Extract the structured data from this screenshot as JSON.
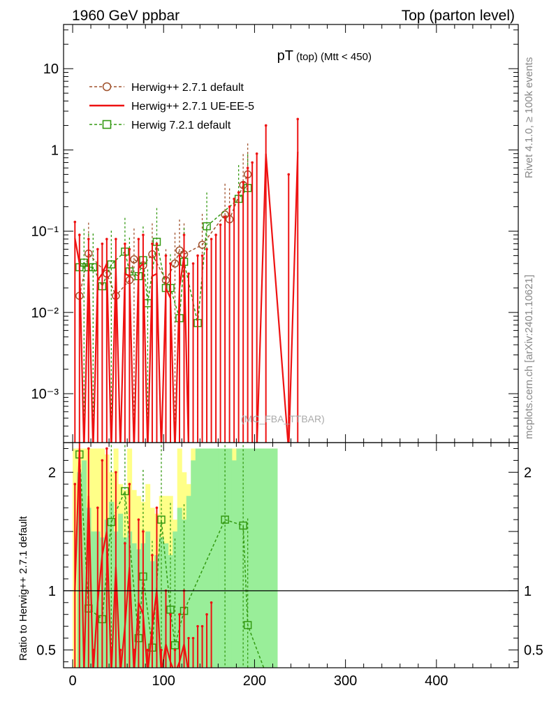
{
  "header": {
    "left": "1960 GeV ppbar",
    "right": "Top (parton level)"
  },
  "side_labels": {
    "top": "Rivet 4.1.0, ≥ 100k events",
    "bottom": "mcplots.cern.ch [arXiv:2401.10621]"
  },
  "watermark": "(MC_FBA_TTBAR)",
  "colors": {
    "herwig271_default": "#a0522d",
    "herwig271_ueee5": "#ee1111",
    "herwig721_default": "#339911",
    "band_yellow": "#ffff88",
    "band_green": "#99ee99"
  },
  "chart_data": [
    {
      "type": "line",
      "title": "pT",
      "title_sub": "(top) (Mtt < 450)",
      "yscale": "log",
      "ylim": [
        0.00025,
        35
      ],
      "xlim": [
        -10,
        490
      ],
      "y_ticks": [
        {
          "value": 10,
          "label": "10"
        },
        {
          "value": 1,
          "label": "1"
        },
        {
          "value": 0.1,
          "label": "10⁻¹"
        },
        {
          "value": 0.01,
          "label": "10⁻²"
        },
        {
          "value": 0.001,
          "label": "10⁻³"
        }
      ],
      "legend": [
        {
          "name": "Herwig++ 2.7.1 default",
          "style": "dashed-circle"
        },
        {
          "name": "Herwig++ 2.7.1 UE-EE-5",
          "style": "solid"
        },
        {
          "name": "Herwig 7.2.1 default",
          "style": "dashed-square"
        }
      ],
      "series": [
        {
          "name": "Herwig++ 2.7.1 default",
          "x": [
            7.5,
            17.5,
            37.5,
            47.5,
            62.5,
            67.5,
            77.5,
            87.5,
            102.5,
            112.5,
            117.5,
            122.5,
            142.5,
            167.5,
            172.5,
            187.5,
            192.5
          ],
          "y": [
            0.016,
            0.053,
            0.03,
            0.016,
            0.025,
            0.045,
            0.038,
            0.052,
            0.025,
            0.04,
            0.058,
            0.052,
            0.068,
            0.16,
            0.14,
            0.37,
            0.5
          ]
        },
        {
          "name": "Herwig++ 2.7.1 UE-EE-5",
          "x": [
            2.5,
            7.5,
            12.5,
            17.5,
            22.5,
            27.5,
            32.5,
            37.5,
            42.5,
            47.5,
            52.5,
            57.5,
            62.5,
            67.5,
            72.5,
            77.5,
            82.5,
            87.5,
            92.5,
            97.5,
            102.5,
            107.5,
            112.5,
            117.5,
            122.5,
            127.5,
            132.5,
            137.5,
            142.5,
            147.5,
            152.5,
            157.5,
            162.5,
            167.5,
            172.5,
            177.5,
            182.5,
            187.5,
            192.5,
            197.5,
            202.5,
            212.5,
            237.5,
            247.5
          ],
          "y": [
            0.082,
            0.04,
            0.0002,
            0.035,
            0.0002,
            0.025,
            0.03,
            0.04,
            0.0002,
            0.035,
            0.0002,
            0.03,
            0.028,
            0.0002,
            0.035,
            0.04,
            0.0002,
            0.028,
            0.03,
            0.0002,
            0.02,
            0.015,
            0.0002,
            0.02,
            0.05,
            0.0002,
            0.0002,
            0.0002,
            0.0002,
            0.0002,
            0.0002,
            0.0002,
            0.0002,
            0.0002,
            0.0002,
            0.0002,
            0.0002,
            0.0002,
            0.0002,
            0.0002,
            0.0002,
            0.9,
            0.0002,
            0.95
          ],
          "yerr_hi": [
            0.13,
            0.09,
            0.0002,
            0.08,
            0.0002,
            0.06,
            0.07,
            0.08,
            0.0002,
            0.08,
            0.0002,
            0.07,
            0.06,
            0.0002,
            0.08,
            0.09,
            0.0002,
            0.07,
            0.07,
            0.0002,
            0.05,
            0.04,
            0.0002,
            0.05,
            0.09,
            0.03,
            0.04,
            0.05,
            0.05,
            0.06,
            0.08,
            0.09,
            0.12,
            0.15,
            0.2,
            0.25,
            0.3,
            0.4,
            0.6,
            0.7,
            0.9,
            2.0,
            0.5,
            2.4
          ]
        },
        {
          "name": "Herwig 7.2.1 default",
          "x": [
            7.5,
            12.5,
            17.5,
            22.5,
            32.5,
            42.5,
            57.5,
            62.5,
            72.5,
            77.5,
            82.5,
            92.5,
            102.5,
            107.5,
            117.5,
            122.5,
            137.5,
            147.5,
            182.5,
            192.5
          ],
          "y": [
            0.036,
            0.041,
            0.036,
            0.036,
            0.021,
            0.039,
            0.056,
            0.032,
            0.028,
            0.044,
            0.013,
            0.074,
            0.02,
            0.02,
            0.0085,
            0.042,
            0.0074,
            0.115,
            0.25,
            0.34
          ]
        }
      ]
    },
    {
      "type": "line",
      "ylabel": "Ratio to Herwig++ 2.7.1 default",
      "xlabel": "",
      "xlim": [
        -10,
        490
      ],
      "ylim": [
        0.35,
        2.25
      ],
      "x_ticks": [
        {
          "value": 0,
          "label": "0"
        },
        {
          "value": 100,
          "label": "100"
        },
        {
          "value": 200,
          "label": "200"
        },
        {
          "value": 300,
          "label": "300"
        },
        {
          "value": 400,
          "label": "400"
        }
      ],
      "y_ticks": [
        {
          "value": 2,
          "label": "2"
        },
        {
          "value": 1,
          "label": "1"
        },
        {
          "value": 0.5,
          "label": "0.5"
        }
      ],
      "reference_line": 1,
      "bands": {
        "yellow": {
          "x": [
            0,
            5,
            10,
            15,
            20,
            25,
            30,
            35,
            40,
            45,
            50,
            55,
            60,
            65,
            70,
            75,
            80,
            85,
            90,
            95,
            100,
            105,
            110,
            115,
            120,
            125,
            130,
            135,
            140,
            145,
            150,
            155,
            160,
            165,
            170,
            175,
            180,
            185,
            190,
            195,
            200,
            205,
            210,
            215,
            220
          ],
          "lo": [
            0.35,
            0.35,
            0.35,
            0.35,
            0.35,
            0.35,
            0.35,
            0.35,
            0.35,
            0.35,
            0.35,
            0.35,
            0.35,
            0.35,
            0.35,
            0.35,
            0.35,
            0.35,
            0.35,
            0.35,
            0.35,
            0.35,
            0.35,
            0.35,
            0.35,
            0.35,
            0.35,
            0.35,
            0.35,
            0.35,
            0.35,
            0.35,
            0.35,
            0.35,
            0.35,
            0.35,
            0.35,
            0.35,
            0.35,
            0.35,
            0.35,
            0.35,
            0.35,
            0.35,
            0.35
          ],
          "hi": [
            2.2,
            2.2,
            2.2,
            2.2,
            2.2,
            2.2,
            2.2,
            2.15,
            2.0,
            2.2,
            1.9,
            1.85,
            2.2,
            1.85,
            1.8,
            1.75,
            1.9,
            1.7,
            1.65,
            1.8,
            1.8,
            1.8,
            1.6,
            2.2,
            2.0,
            1.9,
            2.2,
            2.2,
            2.2,
            2.0,
            2.2,
            2.2,
            2.2,
            2.2,
            2.2,
            2.2,
            2.2,
            2.2,
            2.2,
            2.2,
            2.2,
            2.2,
            2.2,
            2.2,
            2.2
          ]
        },
        "green": {
          "x": [
            5,
            10,
            15,
            20,
            25,
            30,
            35,
            40,
            45,
            50,
            55,
            60,
            65,
            70,
            75,
            80,
            85,
            90,
            95,
            100,
            105,
            110,
            115,
            120,
            125,
            130,
            135,
            140,
            145,
            150,
            155,
            160,
            165,
            170,
            175,
            180,
            185,
            190,
            195,
            200,
            205,
            210,
            215,
            220
          ],
          "lo": [
            0.35,
            0.35,
            0.35,
            0.35,
            0.35,
            0.35,
            0.35,
            0.35,
            0.35,
            0.35,
            0.35,
            0.35,
            0.35,
            0.35,
            0.35,
            0.35,
            0.35,
            0.35,
            0.35,
            0.35,
            0.35,
            0.35,
            0.35,
            0.35,
            0.35,
            0.35,
            0.35,
            0.35,
            0.35,
            0.35,
            0.35,
            0.35,
            0.35,
            0.35,
            0.35,
            0.35,
            0.35,
            0.35,
            0.35,
            0.35,
            0.35,
            0.35,
            0.35,
            0.35
          ],
          "hi": [
            2.0,
            2.1,
            1.7,
            1.5,
            1.5,
            1.45,
            1.6,
            1.75,
            1.5,
            1.65,
            1.45,
            1.5,
            1.4,
            1.35,
            1.4,
            1.5,
            1.25,
            1.3,
            1.45,
            1.4,
            1.3,
            1.5,
            1.7,
            1.6,
            1.8,
            2.1,
            2.2,
            2.2,
            2.2,
            2.2,
            2.2,
            2.2,
            2.2,
            2.2,
            2.1,
            2.2,
            2.2,
            2.2,
            2.2,
            2.2,
            2.2,
            2.2,
            2.2,
            2.2
          ]
        }
      },
      "series": [
        {
          "name": "Herwig++ 2.7.1 UE-EE-5",
          "x": [
            2.5,
            7.5,
            12.5,
            17.5,
            22.5,
            27.5,
            32.5,
            37.5,
            42.5,
            47.5,
            52.5,
            57.5,
            62.5,
            67.5,
            72.5,
            77.5,
            82.5,
            87.5,
            92.5,
            97.5,
            102.5,
            107.5,
            112.5,
            117.5,
            122.5,
            127.5,
            132.5,
            137.5,
            142.5,
            147.5,
            152.5
          ],
          "y": [
            1.0,
            2.2,
            0.3,
            1.8,
            0.3,
            0.9,
            1.3,
            1.5,
            0.3,
            1.2,
            0.3,
            0.7,
            1.2,
            0.3,
            0.9,
            0.8,
            0.3,
            0.7,
            1.0,
            0.3,
            0.55,
            0.4,
            0.3,
            0.4,
            0.55,
            0.3,
            0.3,
            0.3,
            0.3,
            0.3,
            0.3
          ],
          "yerr_hi": [
            1.9,
            2.3,
            0.5,
            2.2,
            0.5,
            1.7,
            2.1,
            2.2,
            0.5,
            2.0,
            0.5,
            1.4,
            1.9,
            0.5,
            1.6,
            1.5,
            0.5,
            1.3,
            1.7,
            0.5,
            1.0,
            0.8,
            0.5,
            0.8,
            1.0,
            0.6,
            0.6,
            0.7,
            0.7,
            0.8,
            0.9
          ]
        },
        {
          "name": "Herwig 7.2.1 default",
          "x": [
            7.5,
            17.5,
            32.5,
            42.5,
            57.5,
            72.5,
            77.5,
            87.5,
            97.5,
            107.5,
            112.5,
            122.5,
            167.5,
            187.5,
            192.5
          ],
          "y": [
            2.15,
            0.85,
            0.76,
            1.58,
            1.84,
            0.6,
            1.12,
            0.52,
            1.6,
            0.84,
            0.54,
            0.83,
            1.6,
            1.55,
            0.71
          ]
        }
      ]
    }
  ]
}
